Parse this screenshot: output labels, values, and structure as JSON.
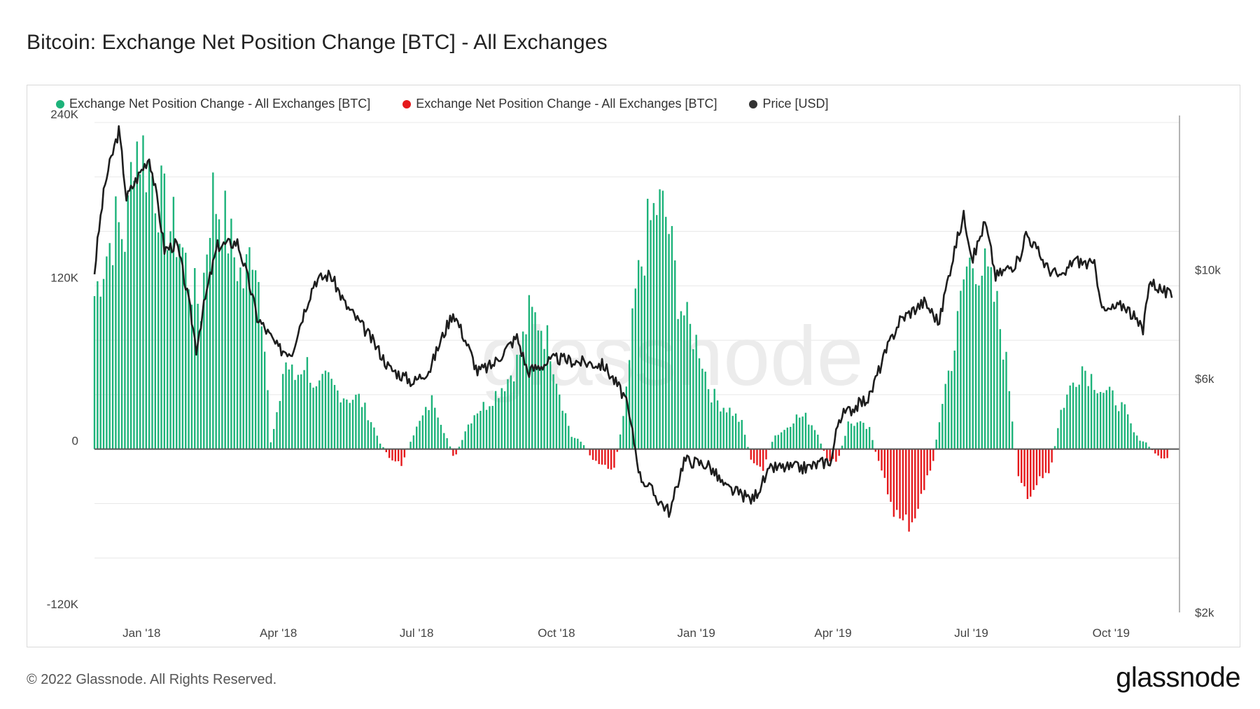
{
  "title": "Bitcoin: Exchange Net Position Change [BTC] - All Exchanges",
  "legend": [
    {
      "label": "Exchange Net Position Change - All Exchanges [BTC]",
      "color": "#1db37a"
    },
    {
      "label": "Exchange Net Position Change - All Exchanges [BTC]",
      "color": "#e5191c"
    },
    {
      "label": "Price [USD]",
      "color": "#333333"
    }
  ],
  "watermark": "glassnode",
  "footer": "© 2022 Glassnode. All Rights Reserved.",
  "brand": "glassnode",
  "colors": {
    "positive": "#1db37a",
    "negative": "#e5191c",
    "price": "#1e1e1e",
    "grid": "#e8e8e8"
  },
  "chart_data": {
    "type": "bar",
    "x_range": [
      "2017-12-01",
      "2019-11-15"
    ],
    "x_tick_labels": [
      "Jan '18",
      "Apr '18",
      "Jul '18",
      "Oct '18",
      "Jan '19",
      "Apr '19",
      "Jul '19",
      "Oct '19"
    ],
    "x_tick_dates": [
      "2018-01-01",
      "2018-04-01",
      "2018-07-01",
      "2018-10-01",
      "2019-01-01",
      "2019-04-01",
      "2019-07-01",
      "2019-10-01"
    ],
    "y_left": {
      "ticks": [
        240000,
        120000,
        0,
        -120000
      ],
      "tick_labels": [
        "240K",
        "120K",
        "0",
        "-120K"
      ],
      "range": [
        -120000,
        240000
      ]
    },
    "y_right": {
      "scale": "log",
      "ticks": [
        10000,
        6000,
        2000
      ],
      "tick_labels": [
        "$10k",
        "$6k",
        "$2k"
      ],
      "range": [
        2000,
        20000
      ]
    },
    "series": [
      {
        "name": "Exchange Net Position Change - All Exchanges [BTC]",
        "kind": "bars",
        "points": [
          [
            "2017-12-01",
            120000
          ],
          [
            "2017-12-08",
            150000
          ],
          [
            "2017-12-15",
            175000
          ],
          [
            "2017-12-22",
            165000
          ],
          [
            "2017-12-27",
            245000
          ],
          [
            "2018-01-05",
            225000
          ],
          [
            "2018-01-12",
            200000
          ],
          [
            "2018-01-19",
            175000
          ],
          [
            "2018-01-26",
            165000
          ],
          [
            "2018-02-02",
            130000
          ],
          [
            "2018-02-09",
            110000
          ],
          [
            "2018-02-16",
            200000
          ],
          [
            "2018-02-23",
            185000
          ],
          [
            "2018-03-02",
            155000
          ],
          [
            "2018-03-09",
            130000
          ],
          [
            "2018-03-16",
            165000
          ],
          [
            "2018-03-23",
            90000
          ],
          [
            "2018-03-27",
            5000
          ],
          [
            "2018-04-01",
            30000
          ],
          [
            "2018-04-05",
            70000
          ],
          [
            "2018-04-12",
            55000
          ],
          [
            "2018-04-19",
            70000
          ],
          [
            "2018-04-26",
            45000
          ],
          [
            "2018-05-03",
            55000
          ],
          [
            "2018-05-10",
            45000
          ],
          [
            "2018-05-17",
            40000
          ],
          [
            "2018-05-24",
            40000
          ],
          [
            "2018-05-31",
            25000
          ],
          [
            "2018-06-07",
            5000
          ],
          [
            "2018-06-14",
            -8000
          ],
          [
            "2018-06-21",
            -12000
          ],
          [
            "2018-06-28",
            10000
          ],
          [
            "2018-07-05",
            25000
          ],
          [
            "2018-07-12",
            40000
          ],
          [
            "2018-07-19",
            15000
          ],
          [
            "2018-07-26",
            -8000
          ],
          [
            "2018-08-02",
            15000
          ],
          [
            "2018-08-09",
            30000
          ],
          [
            "2018-08-16",
            35000
          ],
          [
            "2018-08-23",
            45000
          ],
          [
            "2018-08-30",
            55000
          ],
          [
            "2018-09-06",
            70000
          ],
          [
            "2018-09-13",
            105000
          ],
          [
            "2018-09-20",
            100000
          ],
          [
            "2018-09-27",
            80000
          ],
          [
            "2018-10-04",
            40000
          ],
          [
            "2018-10-11",
            10000
          ],
          [
            "2018-10-18",
            5000
          ],
          [
            "2018-10-25",
            -8000
          ],
          [
            "2018-11-01",
            -12000
          ],
          [
            "2018-11-08",
            -15000
          ],
          [
            "2018-11-15",
            30000
          ],
          [
            "2018-11-22",
            120000
          ],
          [
            "2018-11-29",
            165000
          ],
          [
            "2018-12-06",
            190000
          ],
          [
            "2018-12-13",
            180000
          ],
          [
            "2018-12-20",
            120000
          ],
          [
            "2018-12-27",
            95000
          ],
          [
            "2019-01-03",
            80000
          ],
          [
            "2019-01-10",
            45000
          ],
          [
            "2019-01-17",
            35000
          ],
          [
            "2019-01-24",
            30000
          ],
          [
            "2019-01-31",
            20000
          ],
          [
            "2019-02-07",
            -12000
          ],
          [
            "2019-02-14",
            -15000
          ],
          [
            "2019-02-21",
            10000
          ],
          [
            "2019-02-28",
            15000
          ],
          [
            "2019-03-07",
            25000
          ],
          [
            "2019-03-14",
            25000
          ],
          [
            "2019-03-21",
            15000
          ],
          [
            "2019-03-28",
            -8000
          ],
          [
            "2019-04-04",
            -10000
          ],
          [
            "2019-04-11",
            20000
          ],
          [
            "2019-04-18",
            20000
          ],
          [
            "2019-04-25",
            15000
          ],
          [
            "2019-05-02",
            -15000
          ],
          [
            "2019-05-09",
            -40000
          ],
          [
            "2019-05-16",
            -60000
          ],
          [
            "2019-05-23",
            -55000
          ],
          [
            "2019-05-30",
            -35000
          ],
          [
            "2019-06-06",
            -8000
          ],
          [
            "2019-06-13",
            45000
          ],
          [
            "2019-06-20",
            80000
          ],
          [
            "2019-06-27",
            140000
          ],
          [
            "2019-07-04",
            150000
          ],
          [
            "2019-07-11",
            135000
          ],
          [
            "2019-07-18",
            110000
          ],
          [
            "2019-07-25",
            60000
          ],
          [
            "2019-08-01",
            -25000
          ],
          [
            "2019-08-08",
            -35000
          ],
          [
            "2019-08-15",
            -25000
          ],
          [
            "2019-08-22",
            -18000
          ],
          [
            "2019-08-29",
            30000
          ],
          [
            "2019-09-05",
            50000
          ],
          [
            "2019-09-12",
            65000
          ],
          [
            "2019-09-19",
            55000
          ],
          [
            "2019-09-26",
            45000
          ],
          [
            "2019-10-03",
            40000
          ],
          [
            "2019-10-10",
            30000
          ],
          [
            "2019-10-17",
            10000
          ],
          [
            "2019-10-24",
            5000
          ],
          [
            "2019-10-31",
            -5000
          ],
          [
            "2019-11-07",
            -8000
          ]
        ]
      },
      {
        "name": "Price [USD]",
        "kind": "line",
        "axis": "right",
        "points": [
          [
            "2017-12-01",
            9900
          ],
          [
            "2017-12-08",
            15000
          ],
          [
            "2017-12-17",
            19200
          ],
          [
            "2017-12-22",
            14000
          ],
          [
            "2018-01-06",
            17000
          ],
          [
            "2018-01-16",
            11000
          ],
          [
            "2018-01-24",
            11300
          ],
          [
            "2018-02-06",
            6900
          ],
          [
            "2018-02-20",
            11200
          ],
          [
            "2018-03-05",
            11400
          ],
          [
            "2018-03-18",
            8000
          ],
          [
            "2018-04-01",
            6900
          ],
          [
            "2018-04-10",
            6800
          ],
          [
            "2018-04-25",
            9500
          ],
          [
            "2018-05-05",
            9800
          ],
          [
            "2018-05-15",
            8500
          ],
          [
            "2018-05-30",
            7400
          ],
          [
            "2018-06-13",
            6300
          ],
          [
            "2018-06-29",
            5900
          ],
          [
            "2018-07-10",
            6300
          ],
          [
            "2018-07-25",
            8200
          ],
          [
            "2018-08-10",
            6200
          ],
          [
            "2018-08-20",
            6400
          ],
          [
            "2018-09-05",
            7300
          ],
          [
            "2018-09-12",
            6200
          ],
          [
            "2018-10-01",
            6600
          ],
          [
            "2018-10-15",
            6500
          ],
          [
            "2018-11-01",
            6400
          ],
          [
            "2018-11-15",
            5500
          ],
          [
            "2018-11-25",
            3800
          ],
          [
            "2018-12-07",
            3400
          ],
          [
            "2018-12-15",
            3200
          ],
          [
            "2018-12-24",
            4100
          ],
          [
            "2019-01-09",
            4000
          ],
          [
            "2019-01-20",
            3600
          ],
          [
            "2019-02-07",
            3400
          ],
          [
            "2019-02-20",
            3950
          ],
          [
            "2019-03-15",
            3950
          ],
          [
            "2019-03-31",
            4100
          ],
          [
            "2019-04-05",
            5000
          ],
          [
            "2019-04-25",
            5500
          ],
          [
            "2019-05-15",
            7900
          ],
          [
            "2019-05-31",
            8600
          ],
          [
            "2019-06-10",
            7800
          ],
          [
            "2019-06-26",
            12900
          ],
          [
            "2019-07-02",
            10500
          ],
          [
            "2019-07-10",
            12500
          ],
          [
            "2019-07-17",
            9700
          ],
          [
            "2019-08-01",
            10400
          ],
          [
            "2019-08-06",
            11900
          ],
          [
            "2019-08-20",
            10100
          ],
          [
            "2019-08-30",
            9600
          ],
          [
            "2019-09-06",
            10500
          ],
          [
            "2019-09-20",
            10200
          ],
          [
            "2019-09-26",
            8200
          ],
          [
            "2019-10-10",
            8500
          ],
          [
            "2019-10-22",
            7500
          ],
          [
            "2019-10-26",
            9500
          ],
          [
            "2019-11-10",
            8800
          ]
        ]
      }
    ]
  }
}
